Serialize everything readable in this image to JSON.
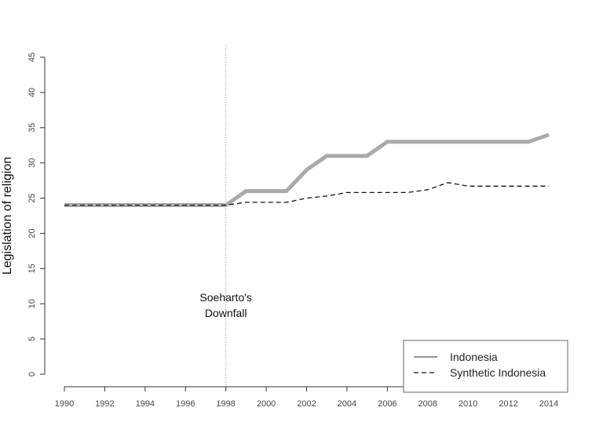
{
  "chart_data": {
    "type": "line",
    "title": "",
    "xlabel": "",
    "ylabel": "Legislation of religion",
    "xlim": [
      1990,
      2014
    ],
    "ylim": [
      0,
      45
    ],
    "xticks": [
      1990,
      1992,
      1994,
      1996,
      1998,
      2000,
      2002,
      2004,
      2006,
      2008,
      2010,
      2012,
      2014
    ],
    "yticks": [
      0,
      5,
      10,
      15,
      20,
      25,
      30,
      35,
      40,
      45
    ],
    "grid": false,
    "legend_position": "bottom-right",
    "x": [
      1990,
      1991,
      1992,
      1993,
      1994,
      1995,
      1996,
      1997,
      1998,
      1999,
      2000,
      2001,
      2002,
      2003,
      2004,
      2005,
      2006,
      2007,
      2008,
      2009,
      2010,
      2011,
      2012,
      2013,
      2014
    ],
    "series": [
      {
        "name": "Indonesia",
        "style": "solid",
        "color": "#aaaaaa",
        "values": [
          24,
          24,
          24,
          24,
          24,
          24,
          24,
          24,
          24,
          26,
          26,
          26,
          29,
          31,
          31,
          31,
          33,
          33,
          33,
          33,
          33,
          33,
          33,
          33,
          34
        ]
      },
      {
        "name": "Synthetic Indonesia",
        "style": "dashed",
        "color": "#111111",
        "values": [
          24,
          24,
          24,
          24,
          24,
          24,
          24,
          24,
          24,
          24.4,
          24.4,
          24.4,
          25.0,
          25.3,
          25.8,
          25.8,
          25.8,
          25.8,
          26.2,
          27.2,
          26.7,
          26.7,
          26.7,
          26.7,
          26.7
        ]
      }
    ],
    "vline": {
      "x": 1998,
      "style": "dotted",
      "color": "#888888"
    },
    "annotation": {
      "x": 1998,
      "y": 10,
      "lines": [
        "Soeharto's",
        "Downfall"
      ]
    }
  }
}
